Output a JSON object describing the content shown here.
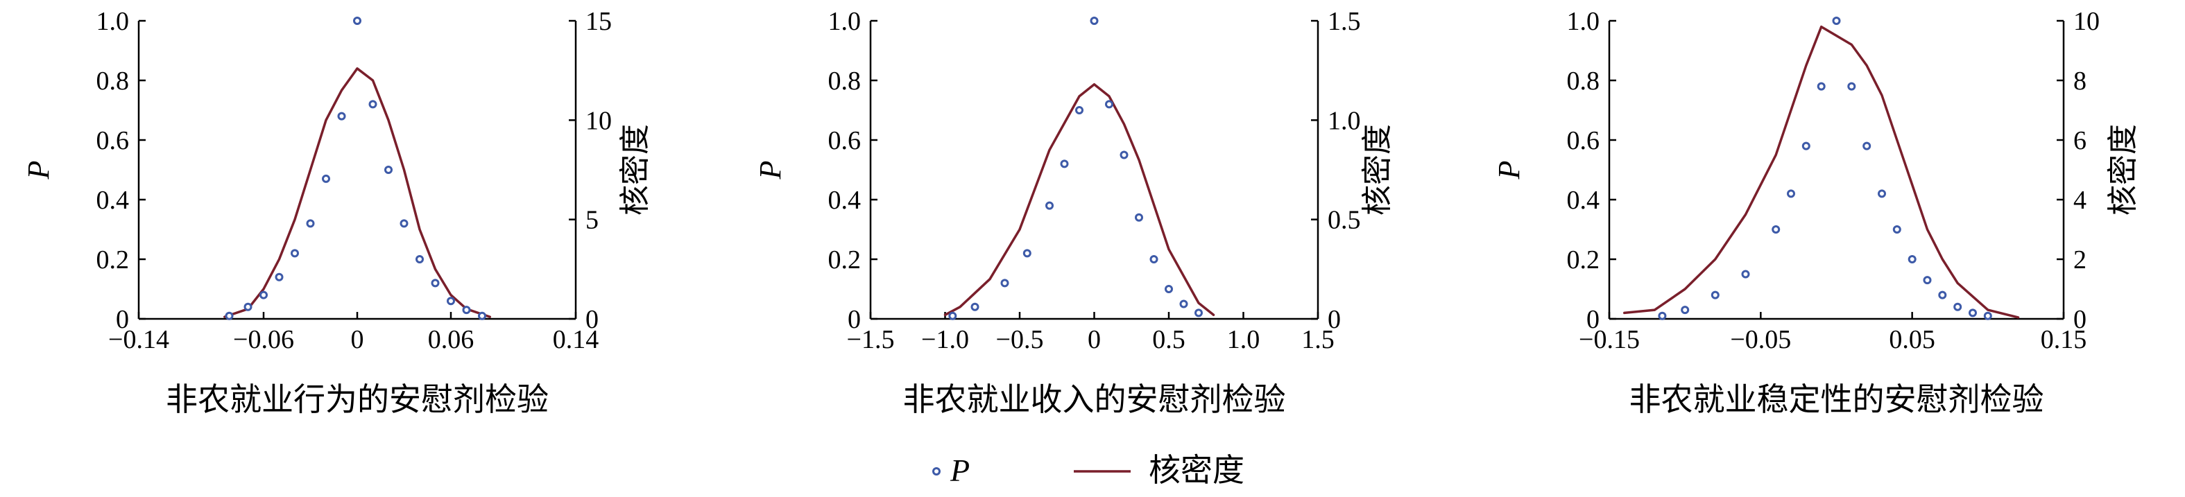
{
  "chart_data": [
    {
      "type": "scatter",
      "xlabel": "非农就业行为的安慰剂检验",
      "ylabel_left": "P",
      "ylabel_right": "核密度",
      "xlim": [
        -0.14,
        0.14
      ],
      "ylim_left": [
        0,
        1.0
      ],
      "ylim_right": [
        0,
        15
      ],
      "xticks": [
        "−0.14",
        "−0.06",
        "0",
        "0.06",
        "0.14"
      ],
      "xtick_values": [
        -0.14,
        -0.06,
        0,
        0.06,
        0.14
      ],
      "yticks_left": [
        "0",
        "0.2",
        "0.4",
        "0.6",
        "0.8",
        "1.0"
      ],
      "ytick_values_left": [
        0,
        0.2,
        0.4,
        0.6,
        0.8,
        1.0
      ],
      "yticks_right": [
        "0",
        "5",
        "10",
        "15"
      ],
      "ytick_values_right": [
        0,
        5,
        10,
        15
      ],
      "series": [
        {
          "name": "P",
          "kind": "scatter",
          "axis": "left",
          "x": [
            -0.082,
            -0.07,
            -0.06,
            -0.05,
            -0.04,
            -0.03,
            -0.02,
            -0.01,
            0.0,
            0.01,
            0.02,
            0.03,
            0.04,
            0.05,
            0.06,
            0.07,
            0.08
          ],
          "y": [
            0.01,
            0.04,
            0.08,
            0.14,
            0.22,
            0.32,
            0.47,
            0.68,
            1.0,
            0.72,
            0.5,
            0.32,
            0.2,
            0.12,
            0.06,
            0.03,
            0.01
          ]
        },
        {
          "name": "核密度",
          "kind": "line",
          "axis": "right",
          "x": [
            -0.085,
            -0.07,
            -0.06,
            -0.05,
            -0.04,
            -0.03,
            -0.02,
            -0.01,
            0.0,
            0.01,
            0.02,
            0.03,
            0.04,
            0.05,
            0.06,
            0.07,
            0.085
          ],
          "y": [
            0.1,
            0.5,
            1.5,
            3.0,
            5.0,
            7.5,
            10.0,
            11.5,
            12.6,
            12.0,
            10.0,
            7.5,
            4.5,
            2.5,
            1.2,
            0.5,
            0.1
          ]
        }
      ]
    },
    {
      "type": "scatter",
      "xlabel": "非农就业收入的安慰剂检验",
      "ylabel_left": "P",
      "ylabel_right": "核密度",
      "xlim": [
        -1.5,
        1.5
      ],
      "ylim_left": [
        0,
        1.0
      ],
      "ylim_right": [
        0,
        1.5
      ],
      "xticks": [
        "−1.5",
        "−1.0",
        "−0.5",
        "0",
        "0.5",
        "1.0",
        "1.5"
      ],
      "xtick_values": [
        -1.5,
        -1.0,
        -0.5,
        0,
        0.5,
        1.0,
        1.5
      ],
      "yticks_left": [
        "0",
        "0.2",
        "0.4",
        "0.6",
        "0.8",
        "1.0"
      ],
      "ytick_values_left": [
        0,
        0.2,
        0.4,
        0.6,
        0.8,
        1.0
      ],
      "yticks_right": [
        "0",
        "0.5",
        "1.0",
        "1.5"
      ],
      "ytick_values_right": [
        0,
        0.5,
        1.0,
        1.5
      ],
      "series": [
        {
          "name": "P",
          "kind": "scatter",
          "axis": "left",
          "x": [
            -0.95,
            -0.8,
            -0.6,
            -0.45,
            -0.3,
            -0.2,
            -0.1,
            0.0,
            0.1,
            0.2,
            0.3,
            0.4,
            0.5,
            0.6,
            0.7
          ],
          "y": [
            0.01,
            0.04,
            0.12,
            0.22,
            0.38,
            0.52,
            0.7,
            1.0,
            0.72,
            0.55,
            0.34,
            0.2,
            0.1,
            0.05,
            0.02
          ]
        },
        {
          "name": "核密度",
          "kind": "line",
          "axis": "right",
          "x": [
            -1.0,
            -0.9,
            -0.7,
            -0.5,
            -0.3,
            -0.1,
            0.0,
            0.1,
            0.2,
            0.3,
            0.5,
            0.7,
            0.8
          ],
          "y": [
            0.02,
            0.06,
            0.2,
            0.45,
            0.85,
            1.12,
            1.18,
            1.12,
            0.98,
            0.8,
            0.35,
            0.08,
            0.02
          ]
        }
      ]
    },
    {
      "type": "scatter",
      "xlabel": "非农就业稳定性的安慰剂检验",
      "ylabel_left": "P",
      "ylabel_right": "核密度",
      "xlim": [
        -0.15,
        0.15
      ],
      "ylim_left": [
        0,
        1.0
      ],
      "ylim_right": [
        0,
        10
      ],
      "xticks": [
        "−0.15",
        "−0.05",
        "0.05",
        "0.15"
      ],
      "xtick_values": [
        -0.15,
        -0.05,
        0.05,
        0.15
      ],
      "yticks_left": [
        "0",
        "0.2",
        "0.4",
        "0.6",
        "0.8",
        "1.0"
      ],
      "ytick_values_left": [
        0,
        0.2,
        0.4,
        0.6,
        0.8,
        1.0
      ],
      "yticks_right": [
        "0",
        "2",
        "4",
        "6",
        "8",
        "10"
      ],
      "ytick_values_right": [
        0,
        2,
        4,
        6,
        8,
        10
      ],
      "series": [
        {
          "name": "P",
          "kind": "scatter",
          "axis": "left",
          "x": [
            -0.115,
            -0.1,
            -0.08,
            -0.06,
            -0.04,
            -0.03,
            -0.02,
            -0.01,
            0.0,
            0.01,
            0.02,
            0.03,
            0.04,
            0.05,
            0.06,
            0.07,
            0.08,
            0.09,
            0.1
          ],
          "y": [
            0.01,
            0.03,
            0.08,
            0.15,
            0.3,
            0.42,
            0.58,
            0.78,
            1.0,
            0.78,
            0.58,
            0.42,
            0.3,
            0.2,
            0.13,
            0.08,
            0.04,
            0.02,
            0.01
          ]
        },
        {
          "name": "核密度",
          "kind": "line",
          "axis": "right",
          "x": [
            -0.14,
            -0.12,
            -0.1,
            -0.08,
            -0.06,
            -0.04,
            -0.02,
            -0.01,
            0.0,
            0.01,
            0.02,
            0.03,
            0.04,
            0.05,
            0.06,
            0.07,
            0.08,
            0.1,
            0.12
          ],
          "y": [
            0.2,
            0.3,
            1.0,
            2.0,
            3.5,
            5.5,
            8.5,
            9.8,
            9.5,
            9.2,
            8.5,
            7.5,
            6.0,
            4.5,
            3.0,
            2.0,
            1.2,
            0.3,
            0.05
          ]
        }
      ]
    }
  ],
  "legend": {
    "items": [
      {
        "label": "P",
        "marker": "scatter-dot",
        "italic": true
      },
      {
        "label": "核密度",
        "marker": "line"
      }
    ]
  },
  "colors": {
    "scatter": "#3d5aa8",
    "density": "#7a1f2b",
    "axis": "#000000"
  }
}
